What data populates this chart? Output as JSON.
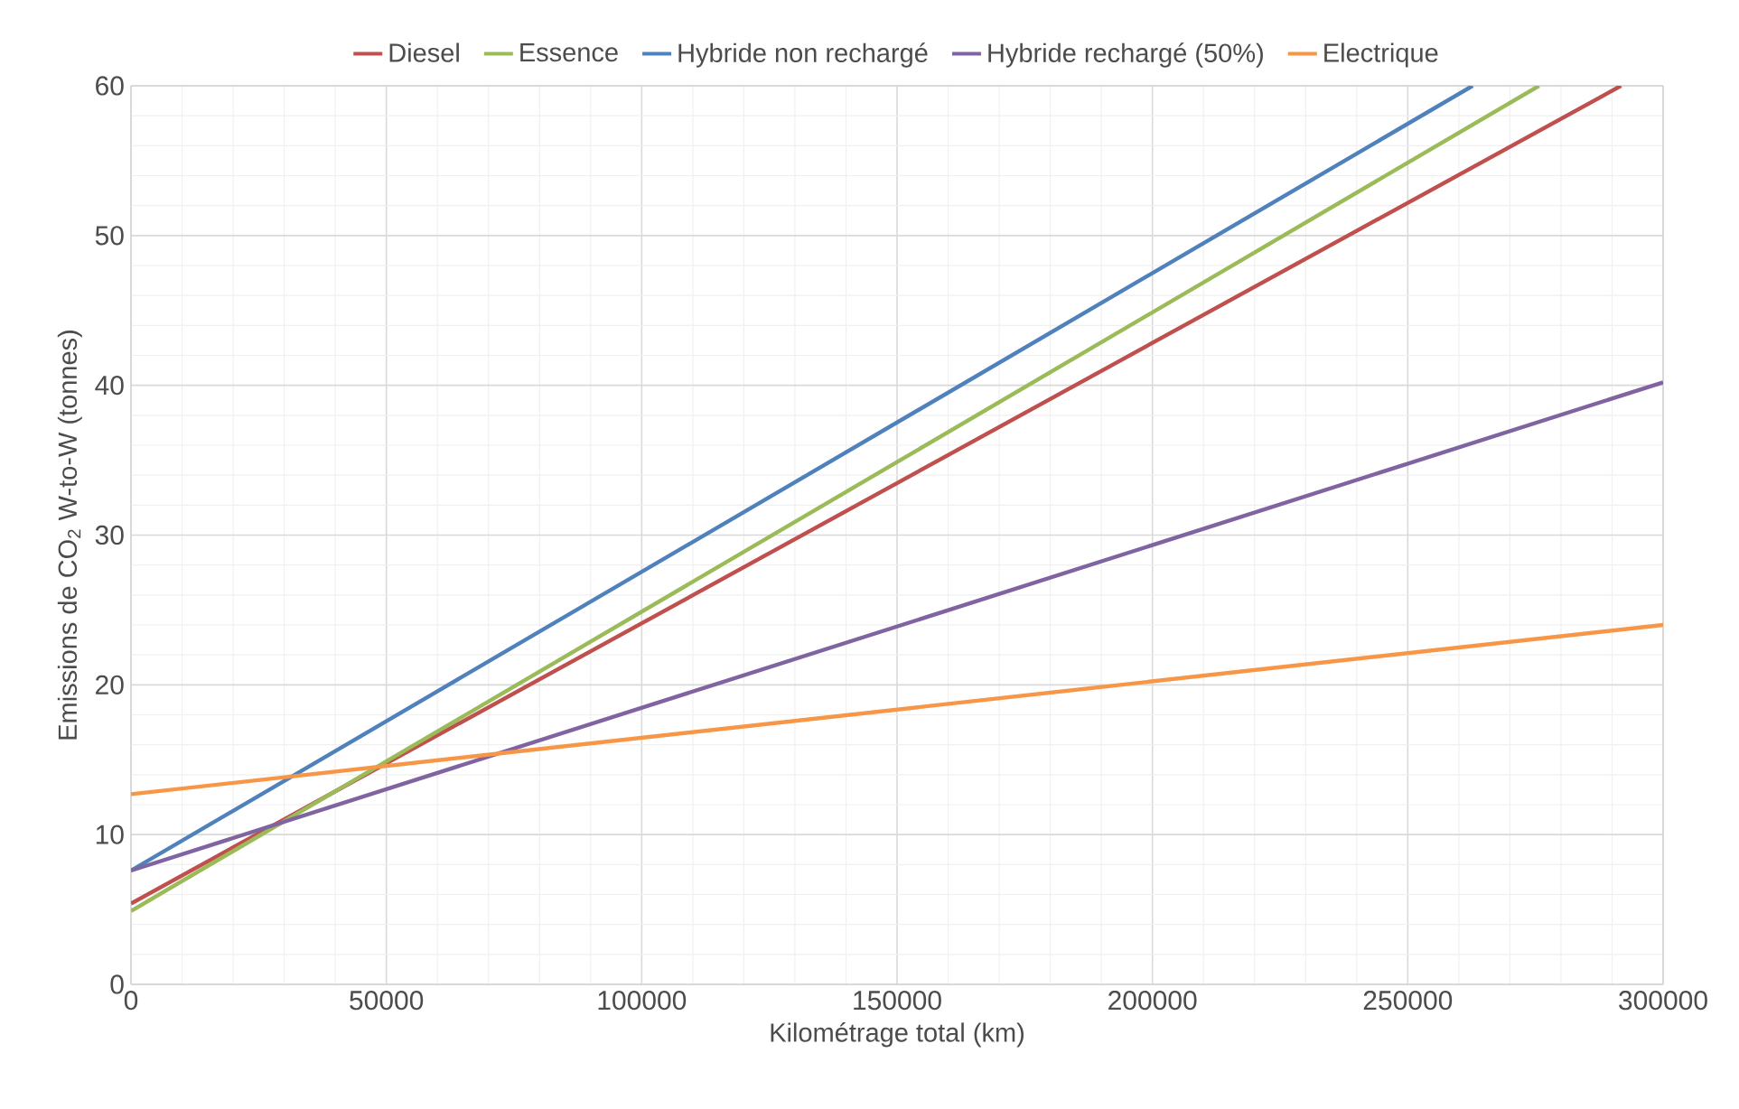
{
  "chart_data": {
    "type": "line",
    "xlabel": "Kilométrage total (km)",
    "ylabel": "Emissions de CO$_{2}$ W-to-W (tonnes)",
    "xlim": [
      0,
      300000
    ],
    "ylim": [
      0,
      60
    ],
    "xticks": [
      0,
      50000,
      100000,
      150000,
      200000,
      250000,
      300000
    ],
    "yticks": [
      0,
      10,
      20,
      30,
      40,
      50,
      60
    ],
    "grid": true,
    "legend": "top",
    "marker": "none",
    "line_style": "solid",
    "series": [
      {
        "name": "Diesel",
        "color": "#c0504d",
        "x": [
          0,
          291750
        ],
        "values": [
          5.4,
          60
        ]
      },
      {
        "name": "Essence",
        "color": "#9bbb59",
        "x": [
          0,
          275700
        ],
        "values": [
          4.9,
          60
        ]
      },
      {
        "name": "Hybride non rechargé",
        "color": "#4f81bd",
        "x": [
          0,
          262700
        ],
        "values": [
          7.6,
          60
        ]
      },
      {
        "name": "Hybride rechargé (50%)",
        "color": "#8064a2",
        "x": [
          0,
          300000
        ],
        "values": [
          7.6,
          40.2
        ]
      },
      {
        "name": "Electrique",
        "color": "#f79646",
        "x": [
          0,
          300000
        ],
        "values": [
          12.7,
          24.0
        ]
      }
    ]
  }
}
